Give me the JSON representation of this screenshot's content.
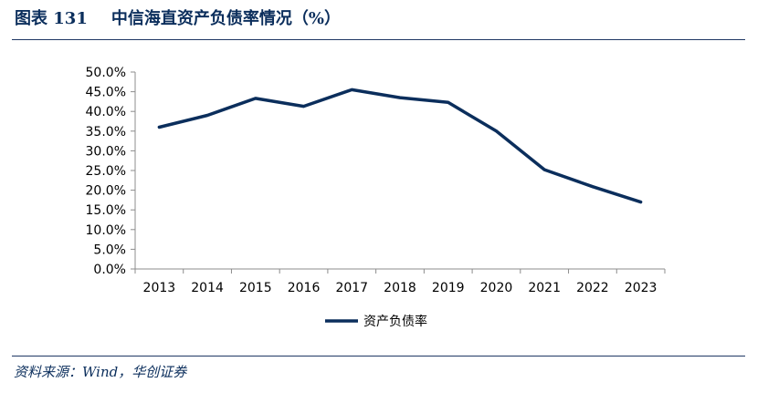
{
  "figure": {
    "number_label": "图表 131",
    "title": "中信海直资产负债率情况（%）",
    "source": "资料来源：Wind，华创证券"
  },
  "chart_data": {
    "type": "line",
    "categories": [
      "2013",
      "2014",
      "2015",
      "2016",
      "2017",
      "2018",
      "2019",
      "2020",
      "2021",
      "2022",
      "2023"
    ],
    "series": [
      {
        "name": "资产负债率",
        "values": [
          36.0,
          39.0,
          43.3,
          41.3,
          45.5,
          43.5,
          42.3,
          35.0,
          25.2,
          20.9,
          17.0
        ],
        "color": "#0b2e5c"
      }
    ],
    "y_ticks": [
      "0.0%",
      "5.0%",
      "10.0%",
      "15.0%",
      "20.0%",
      "25.0%",
      "30.0%",
      "35.0%",
      "40.0%",
      "45.0%",
      "50.0%"
    ],
    "ylim": [
      0,
      50
    ],
    "grid": false,
    "legend_position": "bottom-center"
  }
}
